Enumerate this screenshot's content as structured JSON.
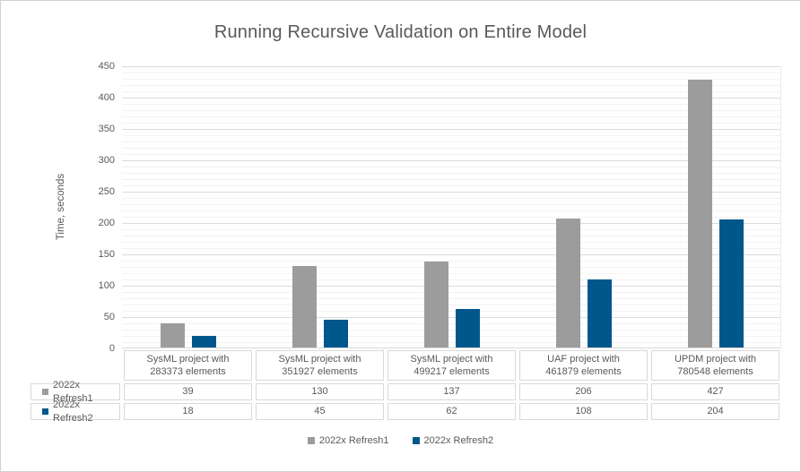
{
  "title": "Running Recursive Validation on Entire Model",
  "chart_data": {
    "type": "bar",
    "title": "Running Recursive Validation on Entire Model",
    "xlabel": "",
    "ylabel": "Time, seconds",
    "ylim": [
      0,
      450
    ],
    "ytick_step": 50,
    "yminor_step": 10,
    "grid": true,
    "legend_position": "bottom",
    "data_table_shown": true,
    "categories": [
      "SysML project with 283373 elements",
      "SysML project with 351927 elements",
      "SysML project with 499217 elements",
      "UAF project with 461879 elements",
      "UPDM project with 780548 elements"
    ],
    "series": [
      {
        "name": "2022x Refresh1",
        "color": "#9c9c9c",
        "values": [
          39,
          130,
          137,
          206,
          427
        ]
      },
      {
        "name": "2022x Refresh2",
        "color": "#00578c",
        "values": [
          18,
          45,
          62,
          108,
          204
        ]
      }
    ]
  },
  "colors": {
    "title_text": "#595959",
    "axis_text": "#595959",
    "major_gridline": "#dbdbdb",
    "minor_gridline": "#f2f2f2",
    "table_border": "#d9d9d9",
    "frame_border": "#d2d2d2",
    "background": "#ffffff"
  }
}
